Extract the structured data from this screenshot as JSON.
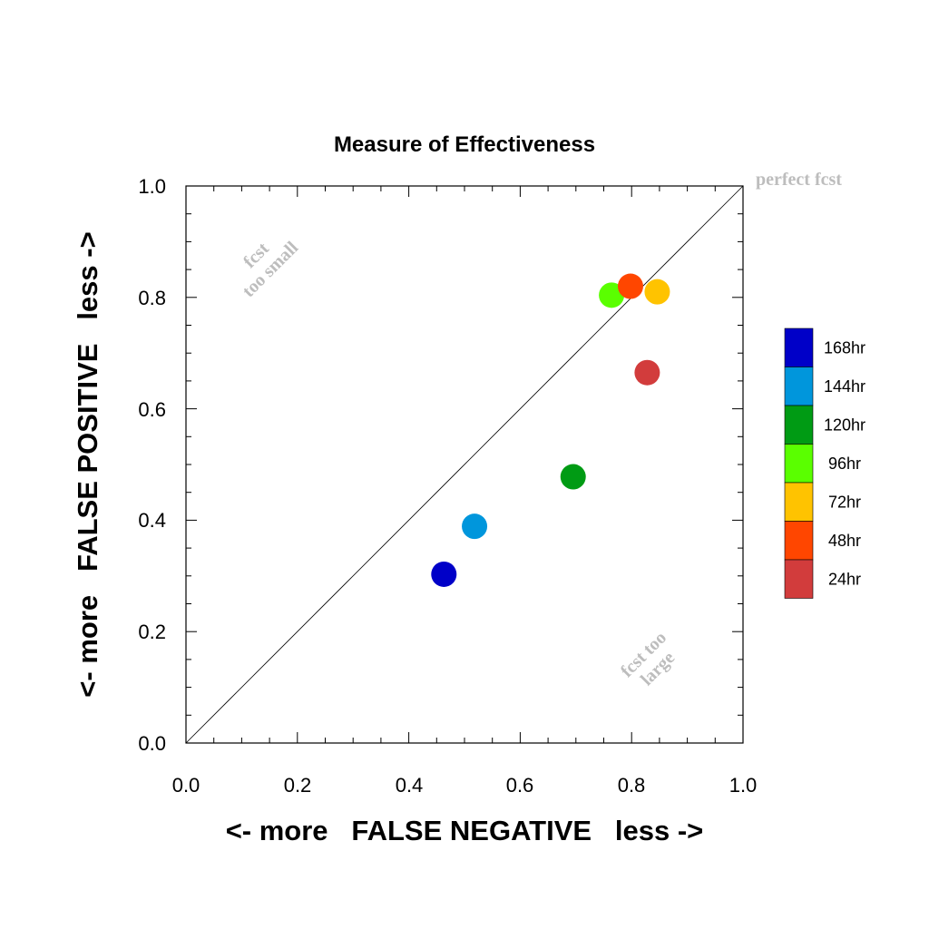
{
  "chart_data": {
    "type": "scatter",
    "title": "Measure of Effectiveness",
    "xlabel": "<- more   FALSE NEGATIVE   less ->",
    "ylabel": "<- more   FALSE POSITIVE   less ->",
    "xlim": [
      0.0,
      1.0
    ],
    "ylim": [
      0.0,
      1.0
    ],
    "xticks": [
      "0.0",
      "0.2",
      "0.4",
      "0.6",
      "0.8",
      "1.0"
    ],
    "yticks": [
      "0.0",
      "0.2",
      "0.4",
      "0.6",
      "0.8",
      "1.0"
    ],
    "grid": false,
    "legend_position": "right",
    "annotations": {
      "perfect": "perfect fcst",
      "small_1": "fcst",
      "small_2": "too small",
      "large_1": "fcst too",
      "large_2": "large"
    },
    "series": [
      {
        "name": "168hr",
        "color": "#0000c8",
        "x": 0.463,
        "y": 0.303
      },
      {
        "name": "144hr",
        "color": "#0096dc",
        "x": 0.518,
        "y": 0.389
      },
      {
        "name": "120hr",
        "color": "#009b14",
        "x": 0.695,
        "y": 0.478
      },
      {
        "name": "96hr",
        "color": "#5aff00",
        "x": 0.764,
        "y": 0.804
      },
      {
        "name": "72hr",
        "color": "#ffc300",
        "x": 0.846,
        "y": 0.81
      },
      {
        "name": "48hr",
        "color": "#ff4600",
        "x": 0.798,
        "y": 0.82
      },
      {
        "name": "24hr",
        "color": "#d23c3c",
        "x": 0.828,
        "y": 0.665
      }
    ]
  }
}
